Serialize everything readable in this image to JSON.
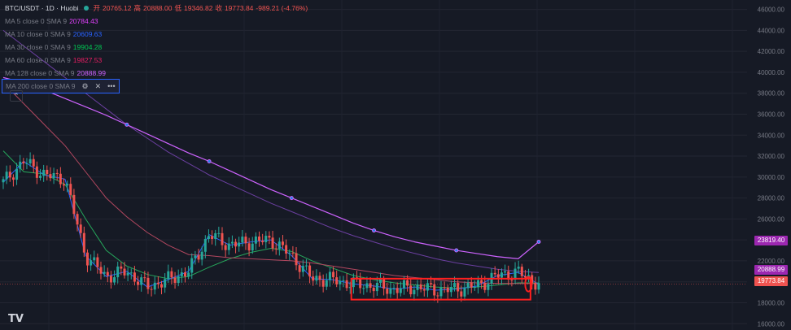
{
  "header": {
    "symbol": "BTC/USDT · 1D · Huobi",
    "open_label": "开",
    "open": "20765.12",
    "high_label": "高",
    "high": "20888.00",
    "low_label": "低",
    "low": "19346.82",
    "close_label": "收",
    "close": "19773.84",
    "change": "-989.21 (-4.76%)"
  },
  "indicators": [
    {
      "label": "MA 5 close 0 SMA 9",
      "value": "20784.43",
      "color": "#e040fb"
    },
    {
      "label": "MA 10 close 0 SMA 9",
      "value": "20609.63",
      "color": "#2962ff"
    },
    {
      "label": "MA 30 close 0 SMA 9",
      "value": "19904.28",
      "color": "#00c853"
    },
    {
      "label": "MA 60 close 0 SMA 9",
      "value": "19827.53",
      "color": "#e91e63"
    },
    {
      "label": "MA 128 close 0 SMA 9",
      "value": "20888.99",
      "color": "#9c27b0"
    },
    {
      "label": "MA 200 close 0 SMA 9",
      "value": "",
      "color": "#ce93d8"
    }
  ],
  "price_tags": [
    {
      "value": "23819.40",
      "color": "#9c27b0"
    },
    {
      "value": "20888.99",
      "color": "#9c27b0"
    },
    {
      "value": "19773.84",
      "color": "#ef5350"
    }
  ],
  "chart_data": {
    "type": "line",
    "title": "BTC/USDT · 1D · Huobi",
    "y_ticks": [
      16000,
      18000,
      20000,
      22000,
      24000,
      26000,
      28000,
      30000,
      32000,
      34000,
      36000,
      38000,
      40000,
      42000,
      44000,
      46000
    ],
    "ylim": [
      15400,
      46900
    ],
    "x": [
      0,
      10,
      20,
      30,
      40,
      50,
      60,
      70,
      80,
      90,
      100,
      110,
      120,
      130,
      140,
      150,
      160,
      170,
      180,
      190,
      200,
      210,
      220,
      230,
      240,
      250,
      260
    ],
    "close": [
      29500,
      31500,
      30200,
      29800,
      22500,
      20500,
      21000,
      19500,
      20200,
      21000,
      24500,
      23500,
      23800,
      24000,
      22500,
      20300,
      20200,
      19800,
      19600,
      19300,
      19500,
      19200,
      19300,
      19600,
      20600,
      20900,
      19774
    ],
    "series": [
      {
        "name": "MA 30 close 0 SMA 9",
        "values": [
          32500,
          30500,
          30300,
          29300,
          26000,
          23000,
          21500,
          20700,
          20300,
          20500,
          21400,
          22200,
          22800,
          23200,
          22900,
          22000,
          21300,
          20600,
          20200,
          19900,
          19700,
          19500,
          19400,
          19500,
          19700,
          19900,
          19904
        ]
      },
      {
        "name": "MA 60 close 0 SMA 9",
        "values": [
          39000,
          37000,
          35000,
          33000,
          30500,
          28000,
          26200,
          24700,
          23500,
          22600,
          22500,
          22300,
          22200,
          22100,
          22000,
          21800,
          21500,
          21200,
          20900,
          20600,
          20400,
          20200,
          20000,
          19900,
          19850,
          19830,
          19828
        ]
      },
      {
        "name": "MA 128 close 0 SMA 9",
        "values": [
          44000,
          42500,
          41000,
          39500,
          38000,
          36500,
          35000,
          33700,
          32400,
          31300,
          30200,
          29300,
          28400,
          27500,
          26700,
          25900,
          25100,
          24400,
          23800,
          23200,
          22700,
          22200,
          21800,
          21500,
          21200,
          21000,
          20889
        ]
      },
      {
        "name": "MA 200 close 0 SMA 9",
        "values": [
          39500,
          39000,
          38300,
          37500,
          36700,
          35900,
          35000,
          34100,
          33200,
          32300,
          31500,
          30600,
          29700,
          28800,
          28000,
          27200,
          26400,
          25600,
          24900,
          24300,
          23800,
          23400,
          23000,
          22700,
          22400,
          22200,
          23819
        ]
      }
    ],
    "annotations": {
      "box": {
        "x0": 169,
        "x1": 256,
        "y0": 18300,
        "y1": 20300
      },
      "circle_at": 255
    }
  }
}
